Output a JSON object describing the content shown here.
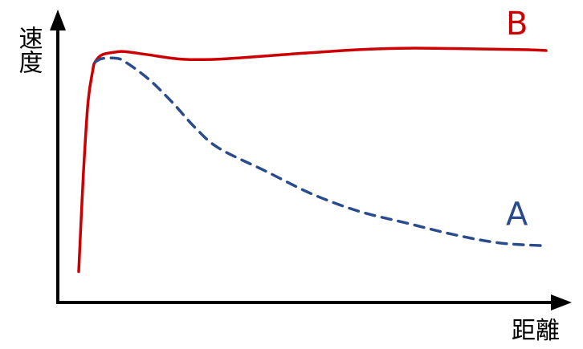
{
  "chart_data": {
    "type": "line",
    "xlabel": "距離",
    "ylabel": "速度",
    "xlim": [
      0,
      100
    ],
    "ylim": [
      0,
      100
    ],
    "grid": false,
    "legend": "none",
    "series": [
      {
        "name": "B",
        "color": "#cc0000",
        "style": "solid",
        "x": [
          0,
          1,
          2,
          3,
          3.5,
          5,
          8,
          10,
          15,
          22,
          30,
          45,
          60,
          70,
          80,
          95,
          100
        ],
        "y": [
          11,
          45,
          70,
          81,
          84,
          86.5,
          87.5,
          87.6,
          86.5,
          85,
          85,
          86.7,
          88.3,
          88.8,
          88.7,
          88.3,
          88
        ]
      },
      {
        "name": "A",
        "color": "#2b4c8c",
        "style": "dashed",
        "x": [
          3.5,
          5,
          8,
          10,
          15,
          20,
          25,
          30,
          40,
          50,
          60,
          70,
          80,
          90,
          100
        ],
        "y": [
          84,
          85.2,
          85.3,
          84,
          78,
          70,
          61,
          54,
          46,
          38,
          32,
          28,
          24,
          21,
          20
        ]
      }
    ]
  }
}
